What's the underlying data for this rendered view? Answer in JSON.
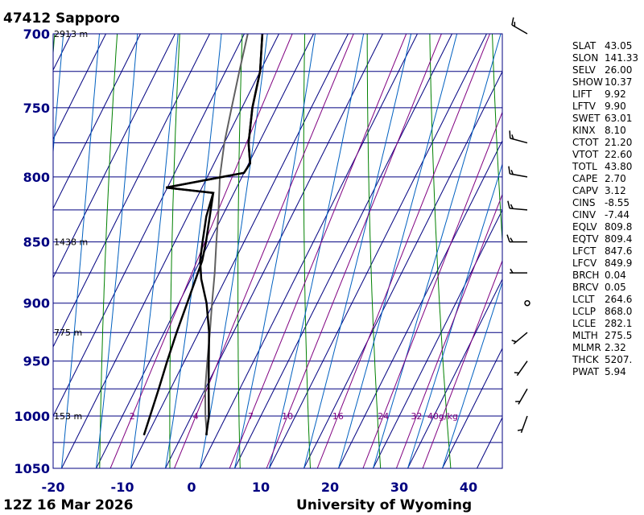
{
  "chart_data": {
    "type": "skew-t",
    "title": "47412  Sapporo",
    "footer_left": "12Z 16 Mar 2026",
    "footer_right": "University of Wyoming",
    "pressure_ticks": [
      700,
      750,
      800,
      850,
      900,
      950,
      1000,
      1050
    ],
    "temperature_ticks": [
      -20,
      -10,
      0,
      10,
      20,
      30,
      40
    ],
    "xlim": [
      -20,
      45
    ],
    "ylim": [
      1050,
      700
    ],
    "height_labels": [
      {
        "p": 700,
        "text": "2913 m"
      },
      {
        "p": 850,
        "text": "1438 m"
      },
      {
        "p": 925,
        "text": "775 m"
      },
      {
        "p": 1000,
        "text": "153 m"
      }
    ],
    "mixing_ratio_labels": [
      "2",
      "4",
      "7",
      "10",
      "16",
      "24",
      "32",
      "40g/kg"
    ],
    "mixing_ratio_values": [
      2,
      4,
      7,
      10,
      16,
      24,
      32,
      40
    ],
    "temperature_profile": [
      [
        1018,
        3.5
      ],
      [
        1000,
        2.5
      ],
      [
        975,
        0.5
      ],
      [
        950,
        -1.5
      ],
      [
        925,
        -3.5
      ],
      [
        900,
        -6.0
      ],
      [
        880,
        -8.5
      ],
      [
        865,
        -10.0
      ],
      [
        850,
        -11.0
      ],
      [
        830,
        -12.3
      ],
      [
        812,
        -13.0
      ],
      [
        808,
        -20.2
      ],
      [
        797,
        -10.0
      ],
      [
        790,
        -9.8
      ],
      [
        775,
        -11.5
      ],
      [
        750,
        -13.5
      ],
      [
        725,
        -15.0
      ],
      [
        700,
        -17.4
      ]
    ],
    "dewpoint_profile": [
      [
        1018,
        -5.5
      ],
      [
        1000,
        -6.0
      ],
      [
        975,
        -6.7
      ],
      [
        950,
        -7.5
      ],
      [
        925,
        -8.2
      ],
      [
        900,
        -8.8
      ],
      [
        880,
        -9.3
      ],
      [
        865,
        -9.7
      ],
      [
        850,
        -10.5
      ],
      [
        830,
        -11.8
      ],
      [
        812,
        -13.0
      ],
      [
        808,
        -20.2
      ],
      [
        797,
        -10.0
      ],
      [
        790,
        -9.8
      ],
      [
        775,
        -11.5
      ],
      [
        750,
        -13.5
      ],
      [
        725,
        -15.0
      ],
      [
        700,
        -17.4
      ]
    ],
    "parcel_profile": [
      [
        1018,
        3.6
      ],
      [
        1000,
        2.0
      ],
      [
        975,
        0.0
      ],
      [
        950,
        -1.7
      ],
      [
        925,
        -3.4
      ],
      [
        900,
        -5.2
      ],
      [
        875,
        -7.0
      ],
      [
        850,
        -9.0
      ],
      [
        825,
        -11.0
      ],
      [
        800,
        -13.2
      ],
      [
        775,
        -15.0
      ],
      [
        750,
        -16.5
      ],
      [
        725,
        -18.0
      ],
      [
        700,
        -19.5
      ]
    ],
    "wind_barbs": [
      {
        "p": 1000,
        "speed_kt": 5,
        "dir_deg": 200
      },
      {
        "p": 975,
        "speed_kt": 5,
        "dir_deg": 210
      },
      {
        "p": 950,
        "speed_kt": 5,
        "dir_deg": 215
      },
      {
        "p": 925,
        "speed_kt": 5,
        "dir_deg": 230
      },
      {
        "p": 900,
        "speed_kt": 0,
        "dir_deg": 0
      },
      {
        "p": 875,
        "speed_kt": 5,
        "dir_deg": 270
      },
      {
        "p": 850,
        "speed_kt": 15,
        "dir_deg": 270
      },
      {
        "p": 825,
        "speed_kt": 15,
        "dir_deg": 275
      },
      {
        "p": 800,
        "speed_kt": 15,
        "dir_deg": 280
      },
      {
        "p": 775,
        "speed_kt": 15,
        "dir_deg": 285
      },
      {
        "p": 700,
        "speed_kt": 15,
        "dir_deg": 300
      }
    ],
    "indices": [
      {
        "name": "SLAT",
        "value": "43.05"
      },
      {
        "name": "SLON",
        "value": "141.33"
      },
      {
        "name": "SELV",
        "value": "26.00"
      },
      {
        "name": "SHOW",
        "value": "10.37"
      },
      {
        "name": "LIFT",
        "value": "9.92"
      },
      {
        "name": "LFTV",
        "value": "9.90"
      },
      {
        "name": "SWET",
        "value": "63.01"
      },
      {
        "name": "KINX",
        "value": "8.10"
      },
      {
        "name": "CTOT",
        "value": "21.20"
      },
      {
        "name": "VTOT",
        "value": "22.60"
      },
      {
        "name": "TOTL",
        "value": "43.80"
      },
      {
        "name": "CAPE",
        "value": "2.70"
      },
      {
        "name": "CAPV",
        "value": "3.12"
      },
      {
        "name": "CINS",
        "value": "-8.55"
      },
      {
        "name": "CINV",
        "value": "-7.44"
      },
      {
        "name": "EQLV",
        "value": "809.8"
      },
      {
        "name": "EQTV",
        "value": "809.4"
      },
      {
        "name": "LFCT",
        "value": "847.6"
      },
      {
        "name": "LFCV",
        "value": "849.9"
      },
      {
        "name": "BRCH",
        "value": "0.04"
      },
      {
        "name": "BRCV",
        "value": "0.05"
      },
      {
        "name": "LCLT",
        "value": "264.6"
      },
      {
        "name": "LCLP",
        "value": "868.0"
      },
      {
        "name": "LCLE",
        "value": "282.1"
      },
      {
        "name": "MLTH",
        "value": "275.5"
      },
      {
        "name": "MLMR",
        "value": "2.32"
      },
      {
        "name": "THCK",
        "value": "5207."
      },
      {
        "name": "PWAT",
        "value": "5.94"
      }
    ],
    "colors": {
      "isobar": "#000080",
      "isotherm": "#000080",
      "dry_adiabat": "#008000",
      "moist_adiabat": "#0060c0",
      "mixing_ratio": "#800080",
      "profile": "#000000",
      "parcel": "#606060"
    }
  }
}
